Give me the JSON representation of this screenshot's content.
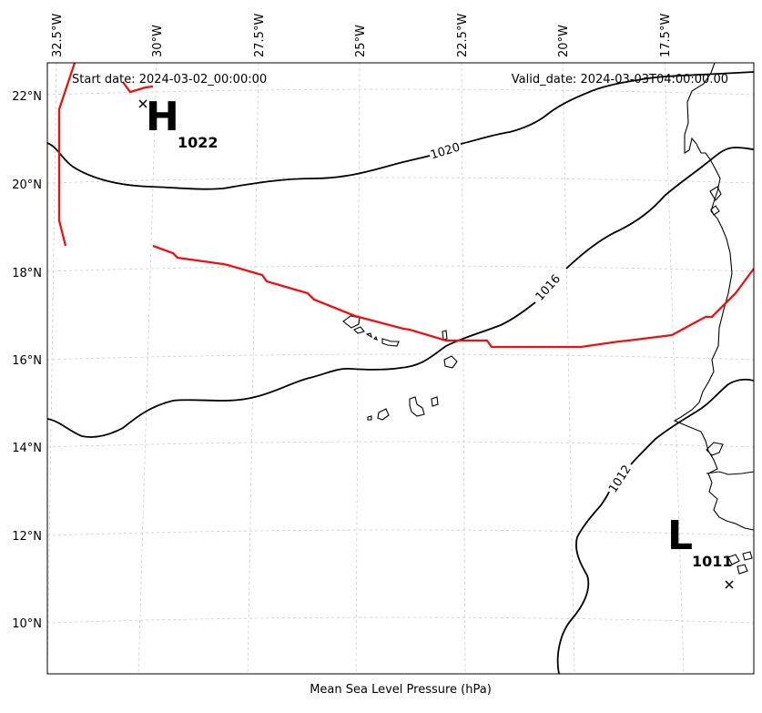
{
  "map": {
    "caption": "Mean Sea Level Pressure (hPa)",
    "start_date": "Start date: 2024-03-02_00:00:00",
    "valid_date": "Valid_date: 2024-03-03T04:00:00.00",
    "lon_ticks": [
      "32.5°W",
      "30°W",
      "27.5°W",
      "25°W",
      "22.5°W",
      "20°W",
      "17.5°W"
    ],
    "lat_ticks": [
      "22°N",
      "20°N",
      "18°N",
      "16°N",
      "14°N",
      "12°N",
      "10°N"
    ],
    "gridlines": true,
    "isobar_labels": [
      "1020",
      "1016",
      "1012"
    ],
    "high_center": {
      "letter": "H",
      "value": "1022"
    },
    "low_center": {
      "letter": "L",
      "value": "1011"
    },
    "colors": {
      "isobar": "#000000",
      "highlight_line": "#ee1111",
      "grid": "#cccccc",
      "coast": "#000000"
    }
  }
}
